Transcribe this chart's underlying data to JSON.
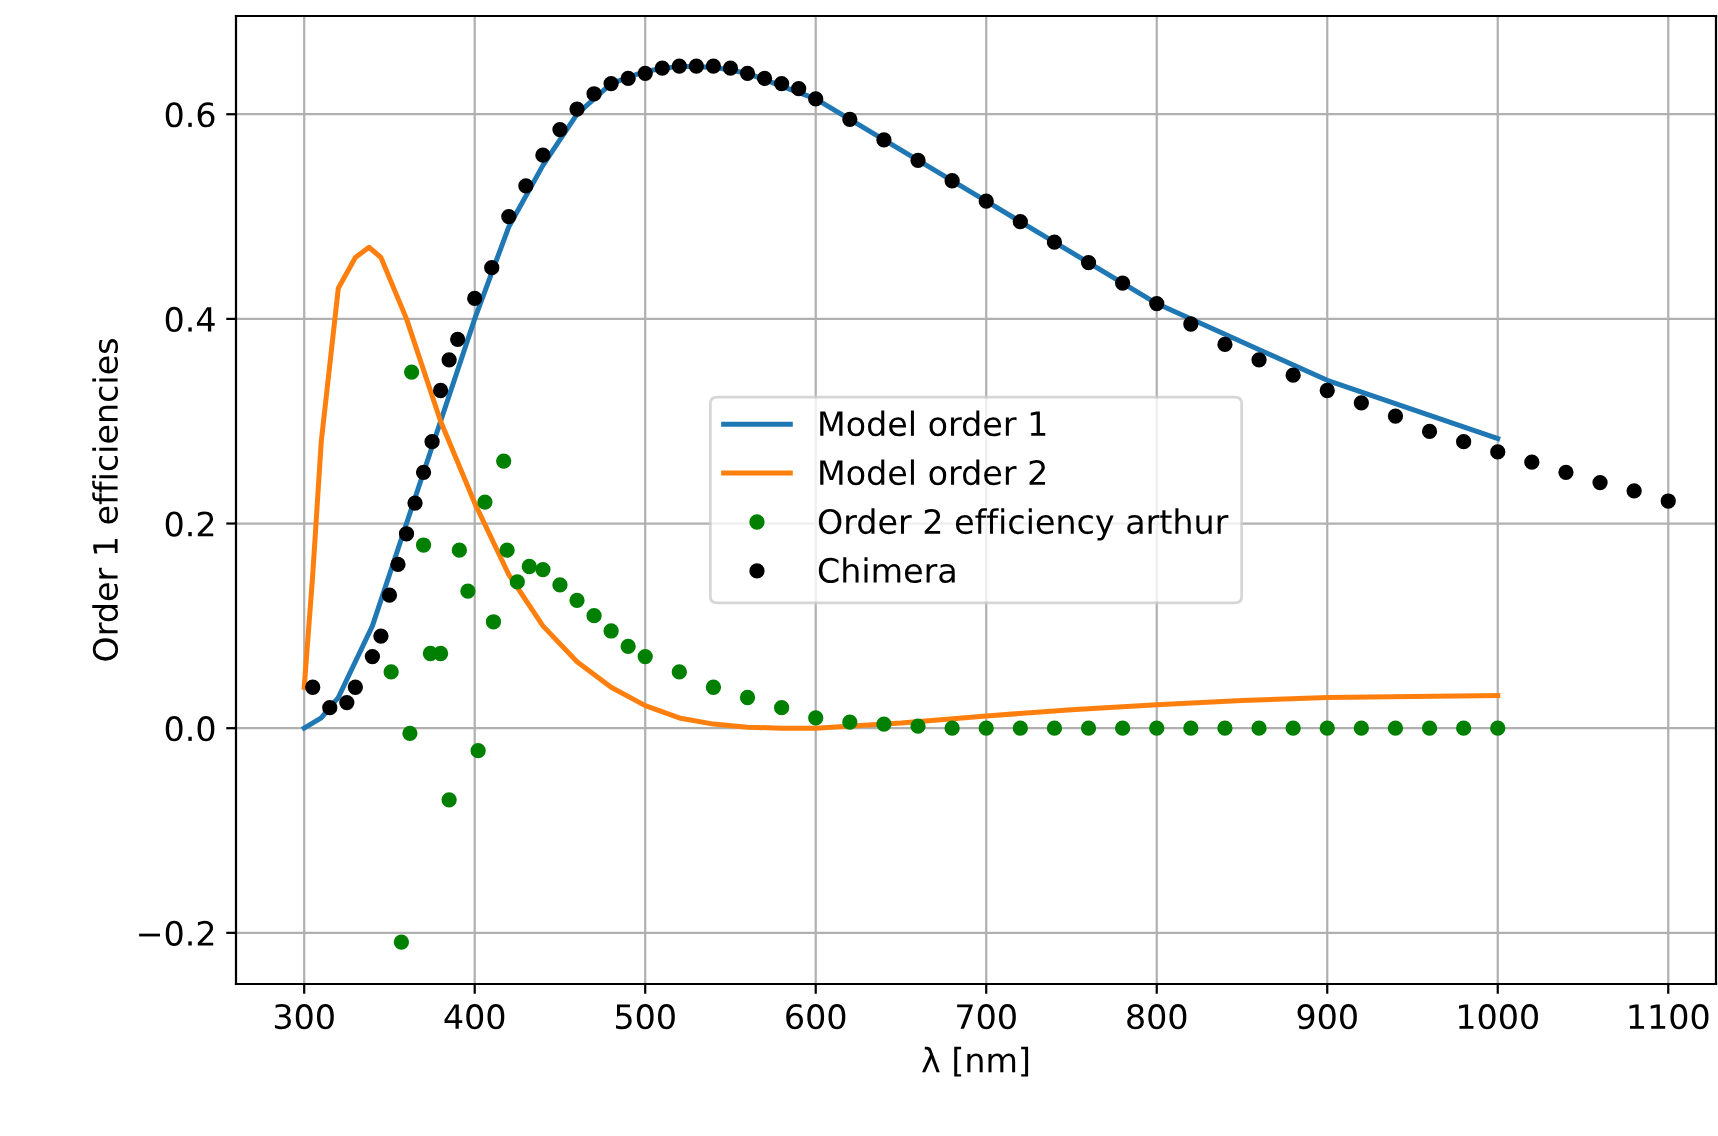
{
  "chart_data": {
    "type": "line",
    "xlabel": "λ [nm]",
    "ylabel": "Order 1 efficiencies",
    "xlim": [
      260,
      1128
    ],
    "ylim": [
      -0.25,
      0.696
    ],
    "xticks": [
      300,
      400,
      500,
      600,
      700,
      800,
      900,
      1000,
      1100
    ],
    "yticks": [
      {
        "value": -0.2,
        "label": "−0.2"
      },
      {
        "value": 0,
        "label": "0.0"
      },
      {
        "value": 0.2,
        "label": "0.2"
      },
      {
        "value": 0.4,
        "label": "0.4"
      },
      {
        "value": 0.6,
        "label": "0.6"
      }
    ],
    "grid": true,
    "legend": "center",
    "series": [
      {
        "name": "Model order 1",
        "color": "#1f77b4",
        "x": [
          300,
          310,
          320,
          340,
          360,
          380,
          400,
          420,
          440,
          460,
          480,
          500,
          520,
          540,
          560,
          600,
          700,
          800,
          900,
          1000
        ],
        "values": [
          0,
          0.01,
          0.03,
          0.1,
          0.2,
          0.3,
          0.4,
          0.49,
          0.55,
          0.6,
          0.63,
          0.642,
          0.647,
          0.646,
          0.64,
          0.615,
          0.515,
          0.415,
          0.34,
          0.283
        ]
      },
      {
        "name": "Model order 2",
        "color": "#ff7f0e",
        "x": [
          300,
          305,
          310,
          320,
          330,
          338,
          345,
          360,
          380,
          400,
          420,
          440,
          460,
          480,
          500,
          520,
          540,
          560,
          580,
          600,
          650,
          700,
          750,
          800,
          850,
          900,
          950,
          1000
        ],
        "values": [
          0.04,
          0.15,
          0.28,
          0.43,
          0.46,
          0.47,
          0.46,
          0.4,
          0.3,
          0.22,
          0.15,
          0.1,
          0.065,
          0.04,
          0.022,
          0.01,
          0.004,
          0.001,
          0,
          0,
          0.005,
          0.012,
          0.018,
          0.023,
          0.027,
          0.03,
          0.031,
          0.032
        ]
      },
      {
        "name": "Order 2 efficiency arthur",
        "type": "scatter",
        "marker": "circle",
        "color": "#008000",
        "x": [
          351,
          357,
          362,
          363,
          370,
          374,
          380,
          385,
          391,
          396,
          402,
          406,
          411,
          417,
          419,
          425,
          432,
          440,
          450,
          460,
          470,
          480,
          490,
          500,
          520,
          540,
          560,
          580,
          600,
          620,
          640,
          660,
          680,
          700,
          720,
          740,
          760,
          780,
          800,
          820,
          840,
          860,
          880,
          900,
          920,
          940,
          960,
          980,
          1000
        ],
        "values": [
          0.055,
          -0.209,
          -0.005,
          0.348,
          0.179,
          0.073,
          0.073,
          -0.07,
          0.174,
          0.134,
          -0.022,
          0.221,
          0.104,
          0.261,
          0.174,
          0.143,
          0.158,
          0.155,
          0.14,
          0.125,
          0.11,
          0.095,
          0.08,
          0.07,
          0.055,
          0.04,
          0.03,
          0.02,
          0.01,
          0.006,
          0.004,
          0.002,
          0,
          0,
          0,
          0,
          0,
          0,
          0,
          0,
          0,
          0,
          0,
          0,
          0,
          0,
          0,
          0,
          0
        ]
      },
      {
        "name": "Chimera",
        "type": "scatter",
        "marker": "circle",
        "color": "#000000",
        "x": [
          305,
          315,
          325,
          330,
          340,
          345,
          350,
          355,
          360,
          365,
          370,
          375,
          380,
          385,
          390,
          400,
          410,
          420,
          430,
          440,
          450,
          460,
          470,
          480,
          490,
          500,
          510,
          520,
          530,
          540,
          550,
          560,
          570,
          580,
          590,
          600,
          620,
          640,
          660,
          680,
          700,
          720,
          740,
          760,
          780,
          800,
          820,
          840,
          860,
          880,
          900,
          920,
          940,
          960,
          980,
          1000,
          1020,
          1040,
          1060,
          1080,
          1100
        ],
        "values": [
          0.04,
          0.02,
          0.025,
          0.04,
          0.07,
          0.09,
          0.13,
          0.16,
          0.19,
          0.22,
          0.25,
          0.28,
          0.33,
          0.36,
          0.38,
          0.42,
          0.45,
          0.5,
          0.53,
          0.56,
          0.585,
          0.605,
          0.62,
          0.63,
          0.635,
          0.64,
          0.645,
          0.647,
          0.647,
          0.647,
          0.645,
          0.64,
          0.635,
          0.63,
          0.625,
          0.615,
          0.595,
          0.575,
          0.555,
          0.535,
          0.515,
          0.495,
          0.475,
          0.455,
          0.435,
          0.415,
          0.395,
          0.375,
          0.36,
          0.345,
          0.33,
          0.318,
          0.305,
          0.29,
          0.28,
          0.27,
          0.26,
          0.25,
          0.24,
          0.232,
          0.222
        ]
      }
    ]
  }
}
